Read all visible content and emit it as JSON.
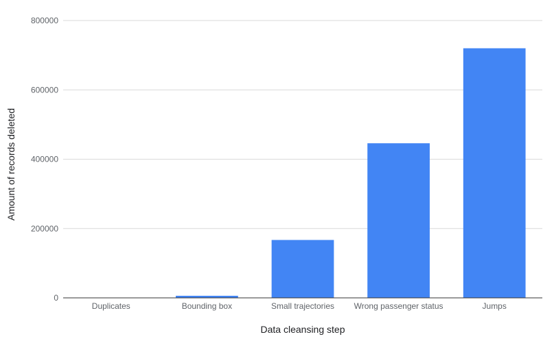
{
  "chart_data": {
    "type": "bar",
    "title": "",
    "xlabel": "Data cleansing step",
    "ylabel": "Amount of records deleted",
    "categories": [
      "Duplicates",
      "Bounding box",
      "Small trajectories",
      "Wrong passenger status",
      "Jumps"
    ],
    "values": [
      0,
      6000,
      167000,
      446000,
      720000
    ],
    "ylim": [
      0,
      800000
    ],
    "yticks": [
      "0",
      "200000",
      "400000",
      "600000",
      "800000"
    ],
    "grid": true,
    "legend": "none",
    "bar_color": "#4285f4",
    "grid_color": "#d9d9d9",
    "baseline_color": "#333333"
  }
}
